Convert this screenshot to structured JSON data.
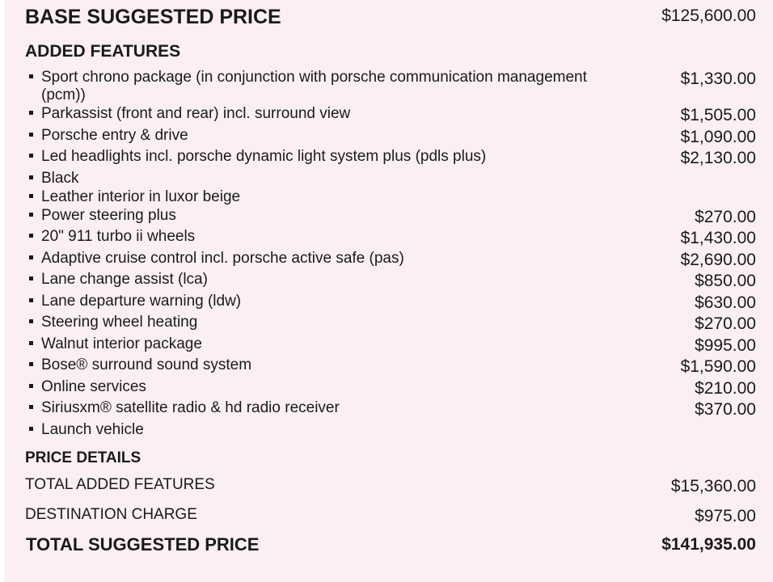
{
  "base": {
    "label": "BASE SUGGESTED PRICE",
    "price": "$125,600.00"
  },
  "added_features": {
    "heading": "ADDED FEATURES",
    "items": [
      {
        "name": "Sport chrono package (in conjunction with porsche communication management",
        "name_cont": "(pcm))",
        "price": "$1,330.00"
      },
      {
        "name": "Parkassist (front and rear) incl. surround view",
        "price": "$1,505.00"
      },
      {
        "name": "Porsche entry & drive",
        "price": "$1,090.00"
      },
      {
        "name": "Led headlights incl. porsche dynamic light system plus (pdls plus)",
        "price": "$2,130.00"
      },
      {
        "name": "Black",
        "price": ""
      },
      {
        "name": "Leather interior in luxor beige",
        "price": ""
      },
      {
        "name": "Power steering plus",
        "price": "$270.00"
      },
      {
        "name": "20\" 911 turbo ii wheels",
        "price": "$1,430.00"
      },
      {
        "name": "Adaptive cruise control incl. porsche active safe (pas)",
        "price": "$2,690.00"
      },
      {
        "name": "Lane change assist (lca)",
        "price": "$850.00"
      },
      {
        "name": "Lane departure warning (ldw)",
        "price": "$630.00"
      },
      {
        "name": "Steering wheel heating",
        "price": "$270.00"
      },
      {
        "name": "Walnut interior package",
        "price": "$995.00"
      },
      {
        "name": "Bose® surround sound system",
        "price": "$1,590.00"
      },
      {
        "name": "Online services",
        "price": "$210.00"
      },
      {
        "name": "Siriusxm® satellite radio & hd radio receiver",
        "price": "$370.00"
      },
      {
        "name": "Launch vehicle",
        "price": ""
      }
    ]
  },
  "price_details": {
    "heading": "PRICE DETAILS",
    "total_added": {
      "label": "TOTAL ADDED FEATURES",
      "price": "$15,360.00"
    },
    "destination": {
      "label": "DESTINATION CHARGE",
      "price": "$975.00"
    },
    "total": {
      "label": "TOTAL SUGGESTED PRICE",
      "price": "$141,935.00"
    }
  }
}
